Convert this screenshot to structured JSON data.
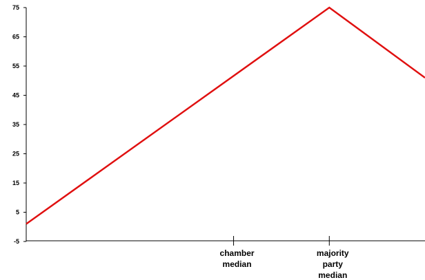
{
  "chart_data": {
    "type": "line",
    "title": "",
    "xlabel": "",
    "ylabel": "",
    "y_ticks": [
      -5,
      5,
      15,
      25,
      35,
      45,
      55,
      65,
      75
    ],
    "ylim": [
      -5,
      75
    ],
    "grid": false,
    "x_category_labels": [
      {
        "label": "chamber median",
        "lines": [
          "chamber",
          "median"
        ],
        "x": 0.52
      },
      {
        "label": "majority party median",
        "lines": [
          "majority",
          "party",
          "median"
        ],
        "x": 0.76
      }
    ],
    "series": [
      {
        "color": "#e01010",
        "points": [
          {
            "x": 0.0,
            "y": 1
          },
          {
            "x": 0.76,
            "y": 75
          },
          {
            "x": 1.0,
            "y": 51
          }
        ]
      }
    ]
  }
}
